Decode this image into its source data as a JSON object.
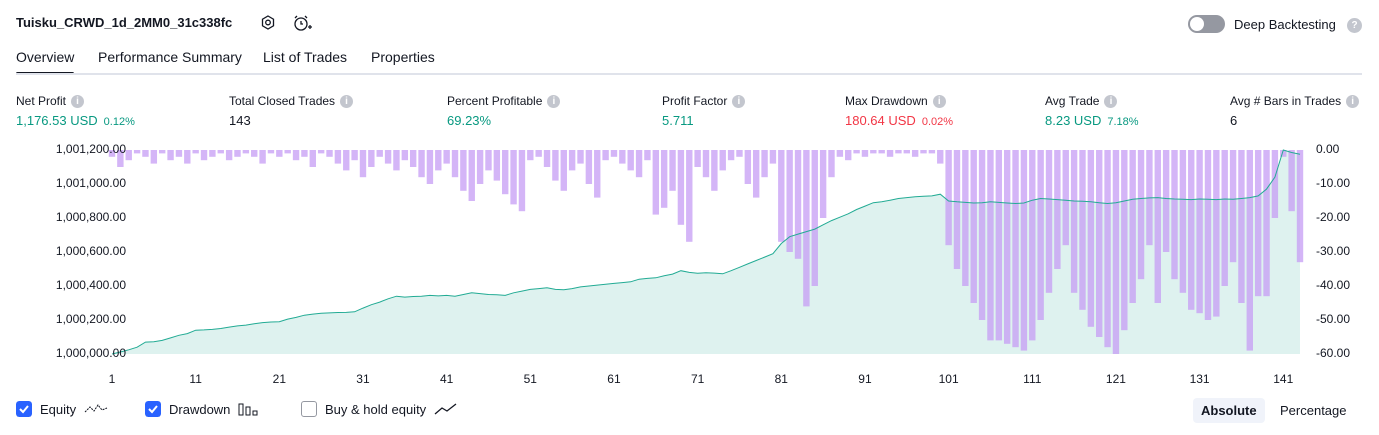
{
  "header": {
    "title": "Tuisku_CRWD_1d_2MM0_31c338fc",
    "deep_backtesting": "Deep Backtesting"
  },
  "tabs": [
    "Overview",
    "Performance Summary",
    "List of Trades",
    "Properties"
  ],
  "metrics": [
    {
      "label": "Net Profit",
      "value": "1,176.53 USD",
      "percent": "0.12%"
    },
    {
      "label": "Total Closed Trades",
      "value": "143"
    },
    {
      "label": "Percent Profitable",
      "value": "69.23%"
    },
    {
      "label": "Profit Factor",
      "value": "5.711"
    },
    {
      "label": "Max Drawdown",
      "value": "180.64 USD",
      "percent": "0.02%"
    },
    {
      "label": "Avg Trade",
      "value": "8.23 USD",
      "percent": "7.18%"
    },
    {
      "label": "Avg # Bars in Trades",
      "value": "6"
    }
  ],
  "chart_data": {
    "type": "equity",
    "x": [
      1,
      2,
      3,
      4,
      5,
      6,
      7,
      8,
      9,
      10,
      11,
      12,
      13,
      14,
      15,
      16,
      17,
      18,
      19,
      20,
      21,
      22,
      23,
      24,
      25,
      26,
      27,
      28,
      29,
      30,
      31,
      32,
      33,
      34,
      35,
      36,
      37,
      38,
      39,
      40,
      41,
      42,
      43,
      44,
      45,
      46,
      47,
      48,
      49,
      50,
      51,
      52,
      53,
      54,
      55,
      56,
      57,
      58,
      59,
      60,
      61,
      62,
      63,
      64,
      65,
      66,
      67,
      68,
      69,
      70,
      71,
      72,
      73,
      74,
      75,
      76,
      77,
      78,
      79,
      80,
      81,
      82,
      83,
      84,
      85,
      86,
      87,
      88,
      89,
      90,
      91,
      92,
      93,
      94,
      95,
      96,
      97,
      98,
      99,
      100,
      101,
      102,
      103,
      104,
      105,
      106,
      107,
      108,
      109,
      110,
      111,
      112,
      113,
      114,
      115,
      116,
      117,
      118,
      119,
      120,
      121,
      122,
      123,
      124,
      125,
      126,
      127,
      128,
      129,
      130,
      131,
      132,
      133,
      134,
      135,
      136,
      137,
      138,
      139,
      140,
      141,
      142,
      143
    ],
    "series": [
      {
        "name": "Equity",
        "color": "#22ab94",
        "values": [
          1000000,
          1000012,
          1000025,
          1000040,
          1000070,
          1000072,
          1000080,
          1000095,
          1000110,
          1000120,
          1000140,
          1000142,
          1000145,
          1000150,
          1000158,
          1000165,
          1000170,
          1000178,
          1000185,
          1000188,
          1000190,
          1000205,
          1000215,
          1000228,
          1000235,
          1000240,
          1000242,
          1000244,
          1000245,
          1000248,
          1000270,
          1000290,
          1000305,
          1000325,
          1000340,
          1000335,
          1000338,
          1000340,
          1000345,
          1000342,
          1000345,
          1000340,
          1000350,
          1000360,
          1000355,
          1000350,
          1000348,
          1000345,
          1000360,
          1000370,
          1000380,
          1000385,
          1000390,
          1000380,
          1000378,
          1000385,
          1000395,
          1000400,
          1000405,
          1000410,
          1000415,
          1000420,
          1000425,
          1000440,
          1000445,
          1000448,
          1000460,
          1000470,
          1000490,
          1000480,
          1000475,
          1000478,
          1000476,
          1000472,
          1000490,
          1000510,
          1000530,
          1000550,
          1000570,
          1000590,
          1000650,
          1000690,
          1000705,
          1000720,
          1000735,
          1000760,
          1000785,
          1000805,
          1000825,
          1000850,
          1000870,
          1000890,
          1000895,
          1000905,
          1000915,
          1000920,
          1000925,
          1000928,
          1000930,
          1000940,
          1000900,
          1000895,
          1000892,
          1000888,
          1000890,
          1000895,
          1000892,
          1000888,
          1000885,
          1000888,
          1000905,
          1000915,
          1000912,
          1000908,
          1000905,
          1000900,
          1000898,
          1000895,
          1000890,
          1000885,
          1000890,
          1000900,
          1000910,
          1000915,
          1000918,
          1000920,
          1000915,
          1000912,
          1000910,
          1000908,
          1000912,
          1000910,
          1000908,
          1000912,
          1000910,
          1000915,
          1000920,
          1000930,
          1000970,
          1001040,
          1001200,
          1001185,
          1001175
        ]
      },
      {
        "name": "Drawdown",
        "color": "#c69cf4",
        "axis": "y2",
        "values": [
          -2,
          -5,
          -3,
          -1,
          -2,
          -4,
          -1,
          -3,
          -2,
          -4,
          -1,
          -3,
          -2,
          -1,
          -3,
          -2,
          -1,
          -2,
          -4,
          -1,
          -2,
          -1,
          -3,
          -2,
          -5,
          -1,
          -2,
          -4,
          -6,
          -3,
          -8,
          -5,
          -2,
          -4,
          -6,
          -3,
          -5,
          -8,
          -10,
          -6,
          -4,
          -8,
          -12,
          -15,
          -10,
          -6,
          -9,
          -13,
          -16,
          -18,
          -3,
          -2,
          -5,
          -9,
          -12,
          -6,
          -4,
          -10,
          -14,
          -3,
          -2,
          -4,
          -6,
          -8,
          -3,
          -19,
          -17,
          -12,
          -22,
          -27,
          -5,
          -8,
          -12,
          -6,
          -3,
          -2,
          -10,
          -14,
          -8,
          -4,
          -27,
          -30,
          -32,
          -46,
          -40,
          -20,
          -8,
          -2,
          -3,
          -1,
          -2,
          -1,
          -1,
          -2,
          -1,
          -1,
          -2,
          -1,
          -1,
          -4,
          -28,
          -35,
          -40,
          -45,
          -50,
          -56,
          -56,
          -57,
          -58,
          -59,
          -56,
          -50,
          -42,
          -35,
          -28,
          -42,
          -47,
          -52,
          -55,
          -58,
          -60,
          -53,
          -45,
          -38,
          -28,
          -45,
          -30,
          -38,
          -42,
          -47,
          -48,
          -50,
          -49,
          -40,
          -33,
          -45,
          -59,
          -43,
          -43,
          -20,
          -2,
          -18,
          -33
        ]
      }
    ],
    "xlim": [
      1,
      143
    ],
    "xticks": [
      1,
      11,
      21,
      31,
      41,
      51,
      61,
      71,
      81,
      91,
      101,
      111,
      121,
      131,
      141
    ],
    "ylim": [
      1000000,
      1001200
    ],
    "yticks": [
      {
        "value": 1000000,
        "label": "1,000,000.00"
      },
      {
        "value": 1000200,
        "label": "1,000,200.00"
      },
      {
        "value": 1000400,
        "label": "1,000,400.00"
      },
      {
        "value": 1000600,
        "label": "1,000,600.00"
      },
      {
        "value": 1000800,
        "label": "1,000,800.00"
      },
      {
        "value": 1001000,
        "label": "1,001,000.00"
      },
      {
        "value": 1001200,
        "label": "1,001,200.00"
      }
    ],
    "y2lim": [
      -60,
      0
    ],
    "y2ticks": [
      {
        "value": 0,
        "label": "0.00"
      },
      {
        "value": -10,
        "label": "-10.00"
      },
      {
        "value": -20,
        "label": "-20.00"
      },
      {
        "value": -30,
        "label": "-30.00"
      },
      {
        "value": -40,
        "label": "-40.00"
      },
      {
        "value": -50,
        "label": "-50.00"
      },
      {
        "value": -60,
        "label": "-60.00"
      }
    ]
  },
  "controls": {
    "buy_hold": "Buy & hold equity",
    "modes": [
      "Absolute",
      "Percentage"
    ]
  }
}
